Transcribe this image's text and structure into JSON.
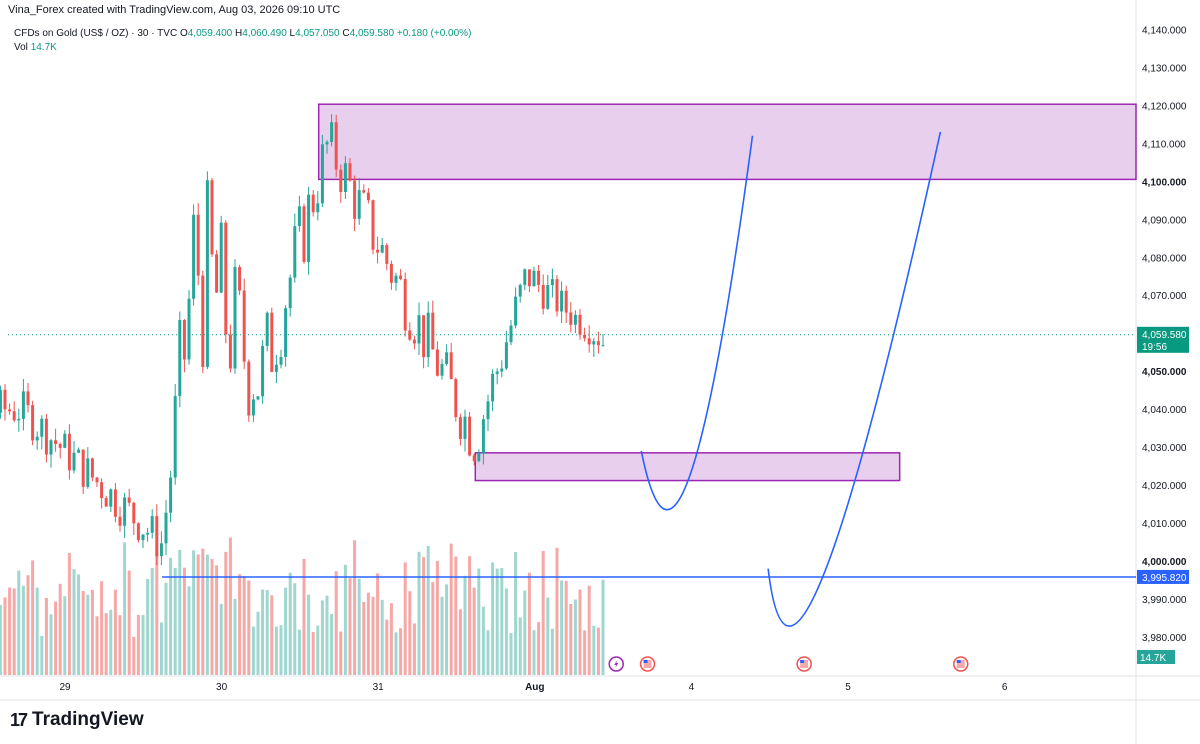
{
  "header": {
    "topline": "Vina_Forex created with TradingView.com, Aug 03, 2026 09:10 UTC"
  },
  "legend": {
    "symbol": "CFDs on Gold (US$ / OZ) · 30 · TVC",
    "open_label": "O",
    "open": "4,059.400",
    "high_label": "H",
    "high": "4,060.490",
    "low_label": "L",
    "low": "4,057.050",
    "close_label": "C",
    "close": "4,059.580",
    "change": "+0.180 (+0.00%)",
    "vol_label": "Vol",
    "vol": "14.7K"
  },
  "brand": {
    "logo_text": "17",
    "name": "TradingView"
  },
  "colors": {
    "up": "#26a69a",
    "down": "#ef5350",
    "vol_up": "#9fd7d0",
    "vol_down": "#f6a8a6",
    "zone_fill": "#e8cfee",
    "zone_border": "#9c27b0",
    "line": "#2962ff",
    "price_tag": "#089981"
  },
  "chart_data": {
    "type": "candlestick",
    "symbol": "CFDs on Gold (US$ / OZ)",
    "timeframe": "30",
    "y_axis": {
      "range": [
        3970,
        4143
      ],
      "ticks": [
        4140,
        4130,
        4120,
        4110,
        4100,
        4090,
        4080,
        4070,
        4060,
        4050,
        4040,
        4030,
        4020,
        4010,
        4000,
        3990,
        3980
      ],
      "tick_labels": [
        "4,140.000",
        "4,130.000",
        "4,120.000",
        "4,110.000",
        "4,100.000",
        "4,090.000",
        "4,080.000",
        "4,070.000",
        "4,060.000",
        "4,050.000",
        "4,040.000",
        "4,030.000",
        "4,020.000",
        "4,010.000",
        "4,000.000",
        "3,990.000",
        "3,980.000"
      ],
      "bold_labels": [
        "4,100.000",
        "4,050.000",
        "4,000.000"
      ]
    },
    "x_axis": {
      "ticks": [
        {
          "label": "29",
          "day": 1
        },
        {
          "label": "30",
          "day": 2
        },
        {
          "label": "31",
          "day": 3
        },
        {
          "label": "Aug",
          "day": 4
        },
        {
          "label": "4",
          "day": 5
        },
        {
          "label": "5",
          "day": 6
        },
        {
          "label": "6",
          "day": 7
        }
      ],
      "bold_labels": [
        "Aug"
      ]
    },
    "last_price": {
      "value": 4059.58,
      "label": "4,059.580",
      "countdown": "19:56"
    },
    "horizontal_line": {
      "value": 3995.82,
      "label": "3,995.820"
    },
    "volume_tag": "14.7K",
    "zones": [
      {
        "name": "supply-zone",
        "from": 4100.5,
        "to": 4120.3,
        "start_day": 2.62,
        "end_day": "extended"
      },
      {
        "name": "demand-zone",
        "from": 4021.2,
        "to": 4028.5,
        "start_day": 3.62,
        "end_day": 6.33
      }
    ],
    "key_candles": [
      {
        "day": 0.72,
        "low": 4033,
        "high": 4047
      },
      {
        "day": 1.62,
        "low": 3997,
        "high": 4012
      },
      {
        "day": 1.83,
        "low": 4043,
        "high": 4117
      },
      {
        "day": 2.25,
        "low": 4028,
        "high": 4067
      },
      {
        "day": 2.68,
        "low": 4100,
        "high": 4120
      },
      {
        "day": 3.62,
        "low": 4021,
        "high": 4043
      },
      {
        "day": 3.95,
        "low": 4068,
        "high": 4083
      },
      {
        "day": 4.45,
        "low": 4053,
        "high": 4061
      }
    ],
    "projection_paths": [
      {
        "name": "projection-1",
        "points": [
          [
            4.68,
            4029
          ],
          [
            4.99,
            4022.5
          ],
          [
            5.39,
            4112
          ]
        ]
      },
      {
        "name": "projection-2",
        "points": [
          [
            5.49,
            3998
          ],
          [
            5.85,
            3997
          ],
          [
            6.59,
            4113
          ]
        ]
      }
    ],
    "event_markers": [
      {
        "day": 4.52,
        "icon": "lightning-icon"
      },
      {
        "day": 4.72,
        "icon": "us-flag-icon"
      },
      {
        "day": 5.72,
        "icon": "us-flag-icon"
      },
      {
        "day": 6.72,
        "icon": "us-flag-icon"
      }
    ]
  }
}
